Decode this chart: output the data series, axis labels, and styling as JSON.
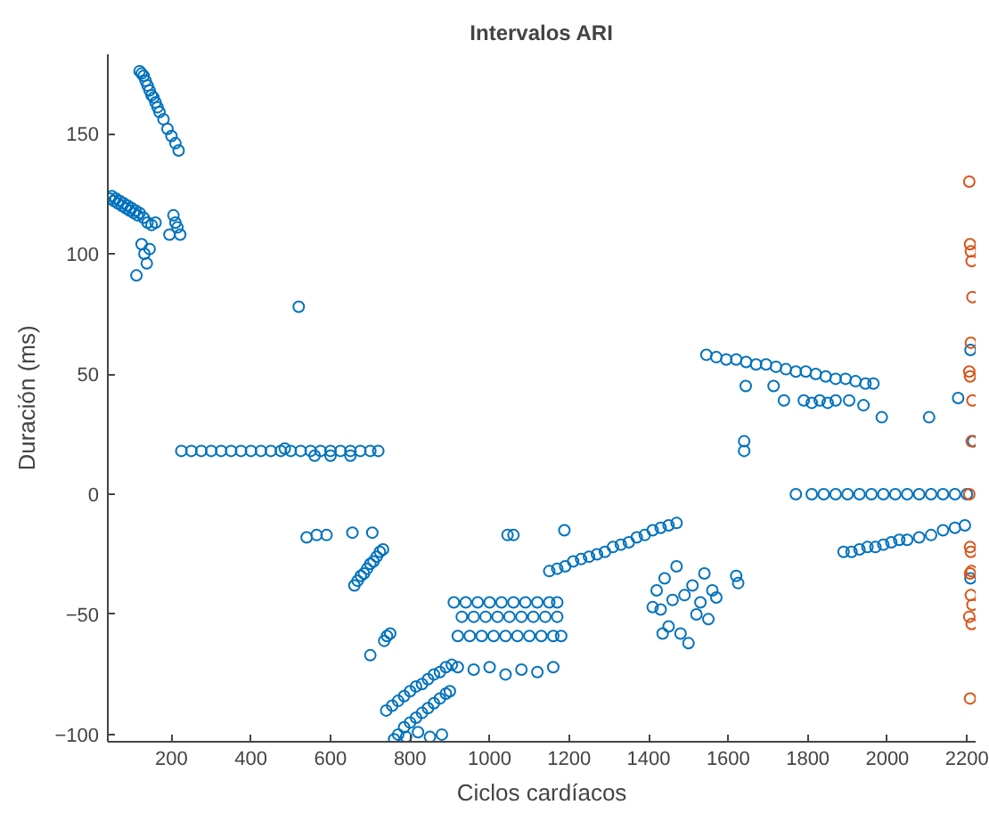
{
  "chart_data": {
    "type": "scatter",
    "title": "Intervalos ARI",
    "xlabel": "Ciclos cardíacos",
    "ylabel": "Duración (ms)",
    "xlim": [
      40,
      2222
    ],
    "ylim": [
      -103,
      183
    ],
    "xticks": [
      200,
      400,
      600,
      800,
      1000,
      1200,
      1400,
      1600,
      1800,
      2000,
      2200
    ],
    "yticks": [
      -100,
      -50,
      0,
      50,
      100,
      150
    ],
    "grid": false,
    "marker": "circle",
    "series": [
      {
        "color": "#0072bd",
        "x": [
          45,
          50,
          55,
          60,
          65,
          70,
          75,
          80,
          85,
          90,
          95,
          100,
          105,
          110,
          115,
          120,
          130,
          140,
          150,
          160,
          120,
          125,
          130,
          135,
          140,
          145,
          150,
          155,
          160,
          165,
          170,
          180,
          190,
          200,
          210,
          218,
          112,
          125,
          132,
          138,
          145,
          195,
          205,
          210,
          215,
          222,
          520,
          225,
          250,
          275,
          300,
          325,
          350,
          375,
          400,
          425,
          450,
          475,
          500,
          525,
          550,
          575,
          600,
          625,
          650,
          675,
          700,
          720,
          485,
          560,
          600,
          650,
          540,
          565,
          590,
          655,
          705,
          660,
          668,
          676,
          684,
          692,
          700,
          708,
          716,
          724,
          732,
          700,
          735,
          742,
          750,
          740,
          755,
          770,
          785,
          800,
          815,
          830,
          845,
          860,
          875,
          890,
          905,
          770,
          785,
          800,
          815,
          830,
          845,
          860,
          875,
          890,
          900,
          790,
          850,
          760,
          820,
          880,
          910,
          940,
          970,
          1000,
          1030,
          1060,
          1090,
          1120,
          1150,
          1170,
          930,
          960,
          990,
          1020,
          1050,
          1080,
          1110,
          1140,
          1170,
          920,
          950,
          980,
          1010,
          1040,
          1070,
          1100,
          1130,
          1160,
          1180,
          920,
          960,
          1000,
          1040,
          1080,
          1120,
          1160,
          1045,
          1060,
          1188,
          1150,
          1170,
          1190,
          1210,
          1230,
          1250,
          1270,
          1290,
          1310,
          1330,
          1350,
          1370,
          1390,
          1410,
          1430,
          1450,
          1470,
          1420,
          1430,
          1440,
          1450,
          1460,
          1470,
          1480,
          1490,
          1500,
          1510,
          1520,
          1530,
          1540,
          1550,
          1560,
          1570,
          1410,
          1435,
          1620,
          1625,
          1640,
          1640,
          1545,
          1570,
          1595,
          1620,
          1645,
          1670,
          1695,
          1720,
          1745,
          1770,
          1795,
          1820,
          1845,
          1870,
          1895,
          1920,
          1945,
          1965,
          1644,
          1714,
          1740,
          1790,
          1810,
          1830,
          1850,
          1870,
          1904,
          1940,
          1986,
          2105,
          2178,
          2209,
          1770,
          1810,
          1840,
          1870,
          1900,
          1930,
          1960,
          1990,
          2020,
          2050,
          2080,
          2110,
          2140,
          2170,
          2200,
          1890,
          1910,
          1930,
          1950,
          1970,
          1990,
          2010,
          2030,
          2050,
          2080,
          2110,
          2140,
          2170,
          2195,
          2209,
          2216
        ],
        "values": [
          123,
          124,
          122,
          123,
          121,
          122,
          120,
          121,
          119,
          120,
          118,
          119,
          117,
          118,
          116,
          117,
          115,
          113,
          112,
          113,
          176,
          175,
          174,
          172,
          170,
          168,
          166,
          165,
          163,
          161,
          159,
          156,
          152,
          149,
          146,
          143,
          91,
          104,
          100,
          96,
          102,
          108,
          116,
          113,
          111,
          108,
          78,
          18,
          18,
          18,
          18,
          18,
          18,
          18,
          18,
          18,
          18,
          18,
          18,
          18,
          18,
          18,
          18,
          18,
          18,
          18,
          18,
          18,
          19,
          16,
          16,
          16,
          -18,
          -17,
          -17,
          -16,
          -16,
          -38,
          -36,
          -34,
          -33,
          -31,
          -29,
          -28,
          -26,
          -24,
          -23,
          -67,
          -61,
          -59,
          -58,
          -90,
          -88,
          -86,
          -84,
          -82,
          -80,
          -79,
          -77,
          -75,
          -74,
          -72,
          -71,
          -100,
          -97,
          -95,
          -93,
          -91,
          -89,
          -87,
          -85,
          -83,
          -82,
          -101,
          -101,
          -102,
          -99,
          -100,
          -45,
          -45,
          -45,
          -45,
          -45,
          -45,
          -45,
          -45,
          -45,
          -45,
          -51,
          -51,
          -51,
          -51,
          -51,
          -51,
          -51,
          -51,
          -51,
          -59,
          -59,
          -59,
          -59,
          -59,
          -59,
          -59,
          -59,
          -59,
          -59,
          -72,
          -73,
          -72,
          -75,
          -73,
          -74,
          -72,
          -17,
          -17,
          -15,
          -32,
          -31,
          -30,
          -28,
          -27,
          -26,
          -25,
          -24,
          -22,
          -21,
          -20,
          -18,
          -17,
          -15,
          -14,
          -13,
          -12,
          -40,
          -48,
          -35,
          -55,
          -44,
          -30,
          -58,
          -42,
          -62,
          -38,
          -50,
          -45,
          -33,
          -52,
          -40,
          -43,
          -47,
          -58,
          -34,
          -37,
          22,
          18,
          58,
          57,
          56,
          56,
          55,
          54,
          54,
          53,
          52,
          51,
          51,
          50,
          49,
          48,
          48,
          47,
          46,
          46,
          45,
          45,
          39,
          39,
          38,
          39,
          38,
          39,
          39,
          37,
          32,
          32,
          40,
          60,
          0,
          0,
          0,
          0,
          0,
          0,
          0,
          0,
          0,
          0,
          0,
          0,
          0,
          0,
          0,
          -24,
          -24,
          -23,
          -22,
          -22,
          -21,
          -20,
          -19,
          -19,
          -18,
          -17,
          -15,
          -14,
          -13,
          -35,
          22
        ]
      },
      {
        "color": "#d95319",
        "x": [
          2206,
          2208,
          2210,
          2212,
          2214,
          2210,
          2206,
          2208,
          2214,
          2212,
          2206,
          2208,
          2210,
          2212,
          2208,
          2210,
          2214,
          2206,
          2212,
          2208
        ],
        "values": [
          130,
          104,
          101,
          97,
          82,
          63,
          51,
          49,
          39,
          22,
          0,
          -22,
          -24,
          -32,
          -33,
          -42,
          -46,
          -51,
          -54,
          -85
        ]
      }
    ]
  }
}
